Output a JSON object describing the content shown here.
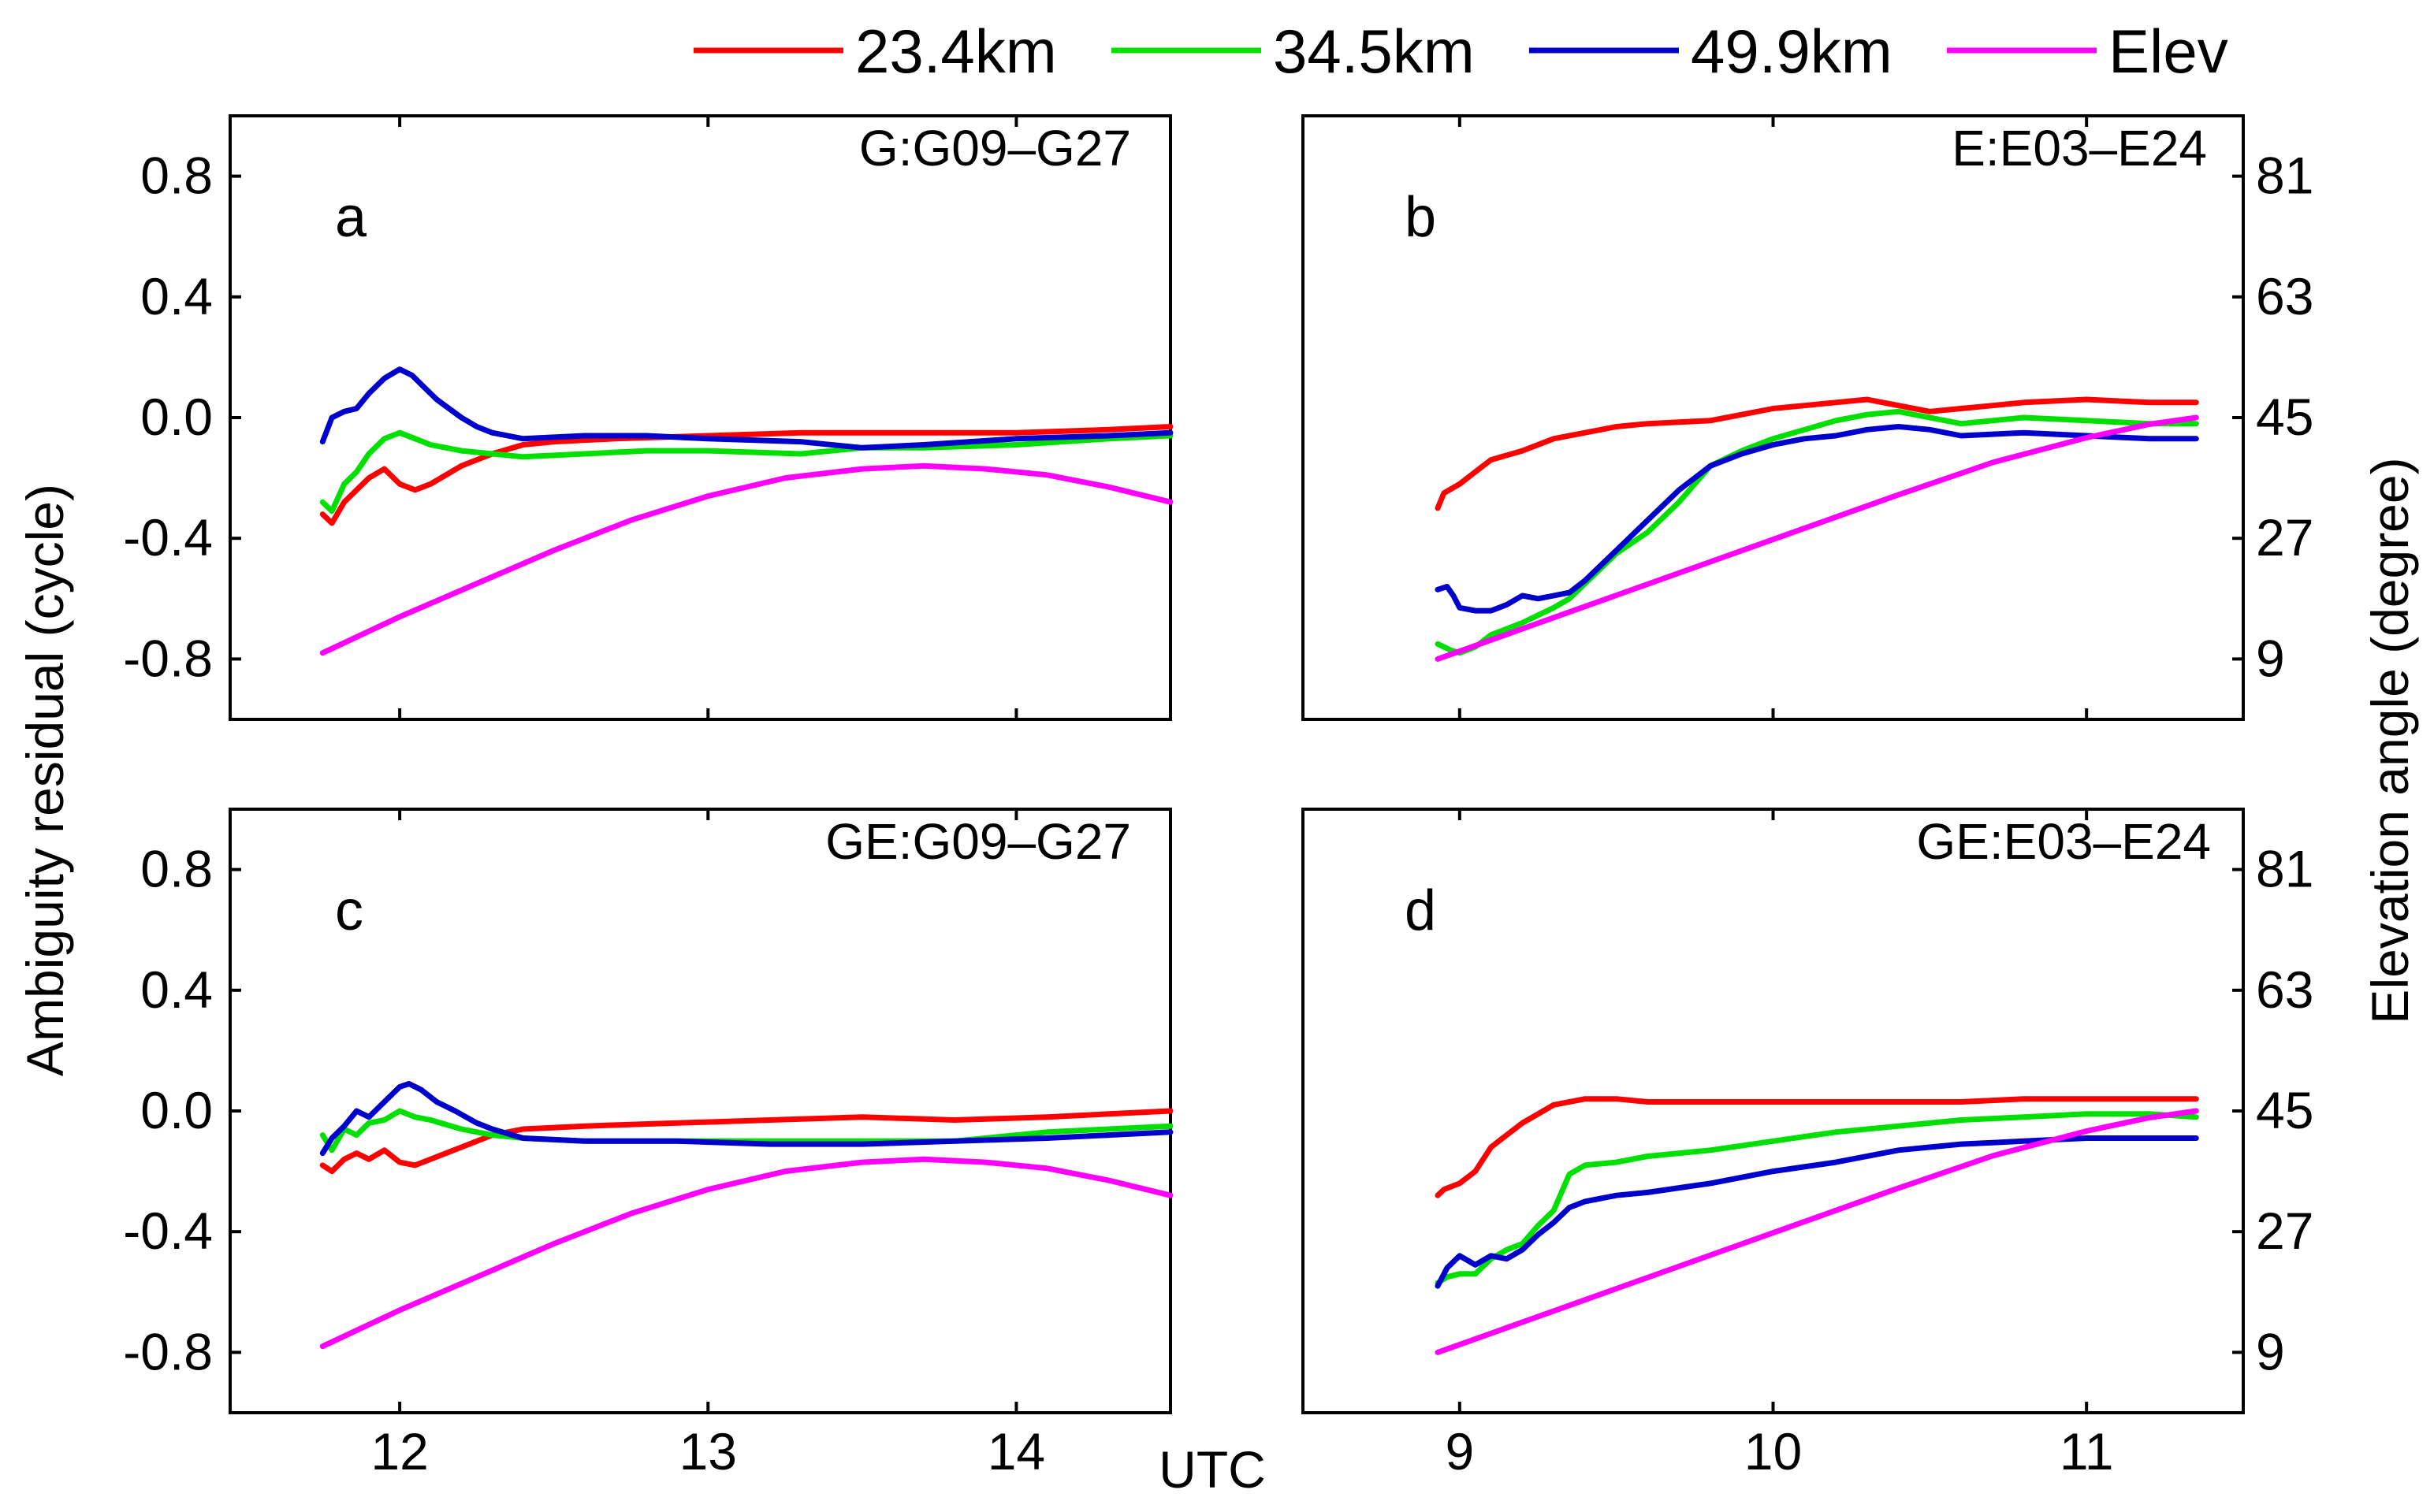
{
  "figure": {
    "ylabel_left": "Ambiguity residual (cycle)",
    "ylabel_right": "Elevation angle (degree)",
    "xlabel": "UTC"
  },
  "legend": [
    {
      "label": "23.4km",
      "color": "#ff0000"
    },
    {
      "label": "34.5km",
      "color": "#00e000"
    },
    {
      "label": "49.9km",
      "color": "#0000cc"
    },
    {
      "label": "Elev",
      "color": "#ff00ff"
    }
  ],
  "chart_data": [
    {
      "type": "line",
      "panel": "a",
      "title": "G:G09–G27",
      "xlim": [
        11.45,
        14.5
      ],
      "ylim": [
        -1.0,
        1.0
      ],
      "elev_lim": [
        0,
        90
      ],
      "xticks": [
        12,
        13,
        14
      ],
      "yticks": [
        -0.8,
        -0.4,
        0.0,
        0.4,
        0.8
      ],
      "ytick_labels": [
        "-0.8",
        "-0.4",
        "0.0",
        "0.4",
        "0.8"
      ],
      "elev_ticks": [],
      "series": [
        {
          "name": "23.4km",
          "axis": "left",
          "x": [
            11.75,
            11.78,
            11.82,
            11.86,
            11.9,
            11.95,
            12.0,
            12.05,
            12.1,
            12.2,
            12.3,
            12.4,
            12.5,
            12.7,
            13.0,
            13.3,
            13.6,
            14.0,
            14.3,
            14.5
          ],
          "y": [
            -0.32,
            -0.35,
            -0.28,
            -0.24,
            -0.2,
            -0.17,
            -0.22,
            -0.24,
            -0.22,
            -0.16,
            -0.12,
            -0.09,
            -0.08,
            -0.07,
            -0.06,
            -0.05,
            -0.05,
            -0.05,
            -0.04,
            -0.03
          ]
        },
        {
          "name": "34.5km",
          "axis": "left",
          "x": [
            11.75,
            11.78,
            11.82,
            11.86,
            11.9,
            11.95,
            12.0,
            12.05,
            12.1,
            12.2,
            12.3,
            12.4,
            12.6,
            12.8,
            13.0,
            13.3,
            13.5,
            13.7,
            14.0,
            14.3,
            14.5
          ],
          "y": [
            -0.28,
            -0.31,
            -0.22,
            -0.18,
            -0.12,
            -0.07,
            -0.05,
            -0.07,
            -0.09,
            -0.11,
            -0.12,
            -0.13,
            -0.12,
            -0.11,
            -0.11,
            -0.12,
            -0.1,
            -0.1,
            -0.09,
            -0.07,
            -0.06
          ]
        },
        {
          "name": "49.9km",
          "axis": "left",
          "x": [
            11.75,
            11.78,
            11.82,
            11.86,
            11.9,
            11.95,
            12.0,
            12.04,
            12.08,
            12.12,
            12.16,
            12.2,
            12.25,
            12.3,
            12.35,
            12.4,
            12.6,
            12.8,
            13.0,
            13.3,
            13.5,
            13.7,
            14.0,
            14.3,
            14.5
          ],
          "y": [
            -0.08,
            0.0,
            0.02,
            0.03,
            0.08,
            0.13,
            0.16,
            0.14,
            0.1,
            0.06,
            0.03,
            0.0,
            -0.03,
            -0.05,
            -0.06,
            -0.07,
            -0.06,
            -0.06,
            -0.07,
            -0.08,
            -0.1,
            -0.09,
            -0.07,
            -0.06,
            -0.05
          ]
        },
        {
          "name": "Elev",
          "axis": "left",
          "x": [
            11.75,
            12.0,
            12.25,
            12.5,
            12.75,
            13.0,
            13.25,
            13.5,
            13.7,
            13.9,
            14.1,
            14.3,
            14.5
          ],
          "y": [
            -0.78,
            -0.66,
            -0.55,
            -0.44,
            -0.34,
            -0.26,
            -0.2,
            -0.17,
            -0.16,
            -0.17,
            -0.19,
            -0.23,
            -0.28
          ]
        }
      ]
    },
    {
      "type": "line",
      "panel": "b",
      "title": "E:E03–E24",
      "xlim": [
        8.5,
        11.5
      ],
      "ylim": [
        -1.0,
        1.0
      ],
      "elev_lim": [
        0,
        90
      ],
      "xticks": [
        9,
        10,
        11
      ],
      "yticks": [],
      "ytick_labels": [],
      "elev_ticks": [
        9,
        27,
        45,
        63,
        81
      ],
      "series": [
        {
          "name": "23.4km",
          "axis": "left",
          "x": [
            8.93,
            8.95,
            9.0,
            9.05,
            9.1,
            9.2,
            9.3,
            9.5,
            9.6,
            9.8,
            9.9,
            10.0,
            10.1,
            10.2,
            10.3,
            10.4,
            10.5,
            10.6,
            10.7,
            10.8,
            11.0,
            11.2,
            11.35
          ],
          "y": [
            -0.3,
            -0.25,
            -0.22,
            -0.18,
            -0.14,
            -0.11,
            -0.07,
            -0.03,
            -0.02,
            -0.01,
            0.01,
            0.03,
            0.04,
            0.05,
            0.06,
            0.04,
            0.02,
            0.03,
            0.04,
            0.05,
            0.06,
            0.05,
            0.05
          ]
        },
        {
          "name": "34.5km",
          "axis": "left",
          "x": [
            8.93,
            8.97,
            9.0,
            9.05,
            9.1,
            9.2,
            9.3,
            9.35,
            9.4,
            9.5,
            9.6,
            9.7,
            9.8,
            9.9,
            10.0,
            10.1,
            10.2,
            10.3,
            10.4,
            10.5,
            10.6,
            10.7,
            10.8,
            11.0,
            11.2,
            11.35
          ],
          "y": [
            -0.75,
            -0.77,
            -0.78,
            -0.76,
            -0.72,
            -0.68,
            -0.63,
            -0.6,
            -0.55,
            -0.45,
            -0.38,
            -0.28,
            -0.16,
            -0.11,
            -0.07,
            -0.04,
            -0.01,
            0.01,
            0.02,
            0.0,
            -0.02,
            -0.01,
            0.0,
            -0.01,
            -0.02,
            -0.02
          ]
        },
        {
          "name": "49.9km",
          "axis": "left",
          "x": [
            8.93,
            8.96,
            8.98,
            9.0,
            9.05,
            9.1,
            9.15,
            9.2,
            9.25,
            9.3,
            9.35,
            9.4,
            9.5,
            9.6,
            9.7,
            9.8,
            9.9,
            10.0,
            10.1,
            10.2,
            10.3,
            10.4,
            10.5,
            10.6,
            10.8,
            11.0,
            11.2,
            11.35
          ],
          "y": [
            -0.57,
            -0.56,
            -0.59,
            -0.63,
            -0.64,
            -0.64,
            -0.62,
            -0.59,
            -0.6,
            -0.59,
            -0.58,
            -0.54,
            -0.44,
            -0.34,
            -0.24,
            -0.16,
            -0.12,
            -0.09,
            -0.07,
            -0.06,
            -0.04,
            -0.03,
            -0.04,
            -0.06,
            -0.05,
            -0.06,
            -0.07,
            -0.07
          ]
        },
        {
          "name": "Elev",
          "axis": "right",
          "x": [
            8.93,
            9.2,
            9.5,
            9.8,
            10.1,
            10.4,
            10.7,
            11.0,
            11.2,
            11.35
          ],
          "y": [
            9,
            13.5,
            18.5,
            23.5,
            28.5,
            33.5,
            38.3,
            42,
            44,
            45
          ]
        }
      ]
    },
    {
      "type": "line",
      "panel": "c",
      "title": "GE:G09–G27",
      "xlim": [
        11.45,
        14.5
      ],
      "ylim": [
        -1.0,
        1.0
      ],
      "elev_lim": [
        0,
        90
      ],
      "xticks": [
        12,
        13,
        14
      ],
      "xtick_labels": [
        "12",
        "13",
        "14"
      ],
      "yticks": [
        -0.8,
        -0.4,
        0.0,
        0.4,
        0.8
      ],
      "ytick_labels": [
        "-0.8",
        "-0.4",
        "0.0",
        "0.4",
        "0.8"
      ],
      "elev_ticks": [],
      "series": [
        {
          "name": "23.4km",
          "axis": "left",
          "x": [
            11.75,
            11.78,
            11.82,
            11.86,
            11.9,
            11.95,
            12.0,
            12.05,
            12.1,
            12.2,
            12.3,
            12.4,
            12.6,
            12.9,
            13.2,
            13.5,
            13.8,
            14.1,
            14.3,
            14.5
          ],
          "y": [
            -0.18,
            -0.2,
            -0.16,
            -0.14,
            -0.16,
            -0.13,
            -0.17,
            -0.18,
            -0.16,
            -0.12,
            -0.08,
            -0.06,
            -0.05,
            -0.04,
            -0.03,
            -0.02,
            -0.03,
            -0.02,
            -0.01,
            0.0
          ]
        },
        {
          "name": "34.5km",
          "axis": "left",
          "x": [
            11.75,
            11.78,
            11.82,
            11.86,
            11.9,
            11.95,
            12.0,
            12.05,
            12.1,
            12.2,
            12.3,
            12.4,
            12.6,
            12.9,
            13.2,
            13.5,
            13.8,
            14.1,
            14.3,
            14.5
          ],
          "y": [
            -0.08,
            -0.13,
            -0.06,
            -0.08,
            -0.04,
            -0.03,
            0.0,
            -0.02,
            -0.03,
            -0.06,
            -0.08,
            -0.09,
            -0.1,
            -0.1,
            -0.1,
            -0.1,
            -0.1,
            -0.07,
            -0.06,
            -0.05
          ]
        },
        {
          "name": "49.9km",
          "axis": "left",
          "x": [
            11.75,
            11.78,
            11.82,
            11.86,
            11.9,
            11.95,
            12.0,
            12.03,
            12.07,
            12.12,
            12.18,
            12.25,
            12.3,
            12.4,
            12.6,
            12.9,
            13.2,
            13.5,
            13.8,
            14.1,
            14.3,
            14.5
          ],
          "y": [
            -0.14,
            -0.09,
            -0.05,
            0.0,
            -0.02,
            0.03,
            0.08,
            0.09,
            0.07,
            0.03,
            0.0,
            -0.04,
            -0.06,
            -0.09,
            -0.1,
            -0.1,
            -0.11,
            -0.11,
            -0.1,
            -0.09,
            -0.08,
            -0.07
          ]
        },
        {
          "name": "Elev",
          "axis": "left",
          "x": [
            11.75,
            12.0,
            12.25,
            12.5,
            12.75,
            13.0,
            13.25,
            13.5,
            13.7,
            13.9,
            14.1,
            14.3,
            14.5
          ],
          "y": [
            -0.78,
            -0.66,
            -0.55,
            -0.44,
            -0.34,
            -0.26,
            -0.2,
            -0.17,
            -0.16,
            -0.17,
            -0.19,
            -0.23,
            -0.28
          ]
        }
      ]
    },
    {
      "type": "line",
      "panel": "d",
      "title": "GE:E03–E24",
      "xlim": [
        8.5,
        11.5
      ],
      "ylim": [
        -1.0,
        1.0
      ],
      "elev_lim": [
        0,
        90
      ],
      "xticks": [
        9,
        10,
        11
      ],
      "xtick_labels": [
        "9",
        "10",
        "11"
      ],
      "yticks": [],
      "ytick_labels": [],
      "elev_ticks": [
        9,
        27,
        45,
        63,
        81
      ],
      "series": [
        {
          "name": "23.4km",
          "axis": "left",
          "x": [
            8.93,
            8.95,
            9.0,
            9.05,
            9.1,
            9.15,
            9.2,
            9.25,
            9.3,
            9.4,
            9.5,
            9.6,
            9.7,
            9.8,
            10.0,
            10.2,
            10.4,
            10.6,
            10.8,
            11.0,
            11.2,
            11.35
          ],
          "y": [
            -0.28,
            -0.26,
            -0.24,
            -0.2,
            -0.12,
            -0.08,
            -0.04,
            -0.01,
            0.02,
            0.04,
            0.04,
            0.03,
            0.03,
            0.03,
            0.03,
            0.03,
            0.03,
            0.03,
            0.04,
            0.04,
            0.04,
            0.04
          ]
        },
        {
          "name": "34.5km",
          "axis": "left",
          "x": [
            8.93,
            8.96,
            9.0,
            9.05,
            9.1,
            9.15,
            9.2,
            9.25,
            9.3,
            9.35,
            9.4,
            9.5,
            9.6,
            9.8,
            10.0,
            10.2,
            10.4,
            10.6,
            10.8,
            11.0,
            11.2,
            11.35
          ],
          "y": [
            -0.57,
            -0.55,
            -0.54,
            -0.54,
            -0.49,
            -0.46,
            -0.44,
            -0.38,
            -0.33,
            -0.21,
            -0.18,
            -0.17,
            -0.15,
            -0.13,
            -0.1,
            -0.07,
            -0.05,
            -0.03,
            -0.02,
            -0.01,
            -0.01,
            -0.02
          ]
        },
        {
          "name": "49.9km",
          "axis": "left",
          "x": [
            8.93,
            8.96,
            9.0,
            9.05,
            9.1,
            9.15,
            9.2,
            9.25,
            9.3,
            9.35,
            9.4,
            9.5,
            9.6,
            9.8,
            10.0,
            10.2,
            10.4,
            10.6,
            10.8,
            11.0,
            11.2,
            11.35
          ],
          "y": [
            -0.58,
            -0.52,
            -0.48,
            -0.51,
            -0.48,
            -0.49,
            -0.46,
            -0.41,
            -0.37,
            -0.32,
            -0.3,
            -0.28,
            -0.27,
            -0.24,
            -0.2,
            -0.17,
            -0.13,
            -0.11,
            -0.1,
            -0.09,
            -0.09,
            -0.09
          ]
        },
        {
          "name": "Elev",
          "axis": "right",
          "x": [
            8.93,
            9.2,
            9.5,
            9.8,
            10.1,
            10.4,
            10.7,
            11.0,
            11.2,
            11.35
          ],
          "y": [
            9,
            13.5,
            18.5,
            23.5,
            28.5,
            33.5,
            38.3,
            42,
            44,
            45
          ]
        }
      ]
    }
  ]
}
